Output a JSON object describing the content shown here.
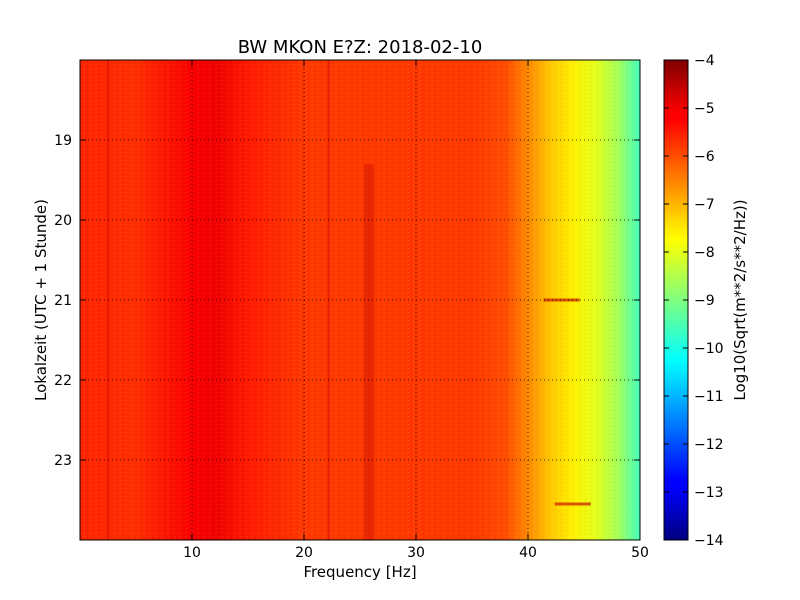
{
  "chart_data": {
    "type": "heatmap",
    "title": "BW MKON E?Z: 2018-02-10",
    "xlabel": "Frequency [Hz]",
    "ylabel": "Lokalzeit (UTC + 1 Stunde)",
    "xlim": [
      0,
      50
    ],
    "ylim": [
      24,
      18
    ],
    "x_ticks": [
      10,
      20,
      30,
      40,
      50
    ],
    "x_tick_labels": [
      "10",
      "20",
      "30",
      "40",
      "50"
    ],
    "y_ticks": [
      19,
      20,
      21,
      22,
      23
    ],
    "y_tick_labels": [
      "19",
      "20",
      "21",
      "22",
      "23"
    ],
    "grid": true,
    "colormap": "jet",
    "colorbar": {
      "label": "Log10(Sqrt(m**2/s**2/Hz))",
      "min": -14,
      "max": -4,
      "ticks": [
        -4,
        -5,
        -6,
        -7,
        -8,
        -9,
        -10,
        -11,
        -12,
        -13,
        -14
      ],
      "tick_labels": [
        "−4",
        "−5",
        "−6",
        "−7",
        "−8",
        "−9",
        "−10",
        "−11",
        "−12",
        "−13",
        "−14"
      ]
    },
    "frequency_profile": {
      "frequency_hz": [
        0,
        5,
        10,
        12,
        15,
        20,
        25,
        30,
        35,
        38,
        40,
        42,
        44,
        46,
        48,
        50
      ],
      "log_amplitude": [
        -5.6,
        -5.7,
        -5.2,
        -5.1,
        -5.5,
        -5.8,
        -5.8,
        -5.8,
        -5.8,
        -6.0,
        -6.6,
        -7.2,
        -7.6,
        -8.0,
        -8.6,
        -9.6
      ]
    },
    "features": [
      {
        "frequency_hz": 2.5,
        "type": "vertical-line"
      },
      {
        "frequency_hz": 22.2,
        "type": "vertical-line"
      },
      {
        "frequency_hz": 25.8,
        "type": "vertical-band"
      },
      {
        "frequency_hz": 43,
        "time": 21.0,
        "type": "short-burst"
      },
      {
        "frequency_hz": 44,
        "time": 23.55,
        "type": "short-burst"
      }
    ]
  }
}
